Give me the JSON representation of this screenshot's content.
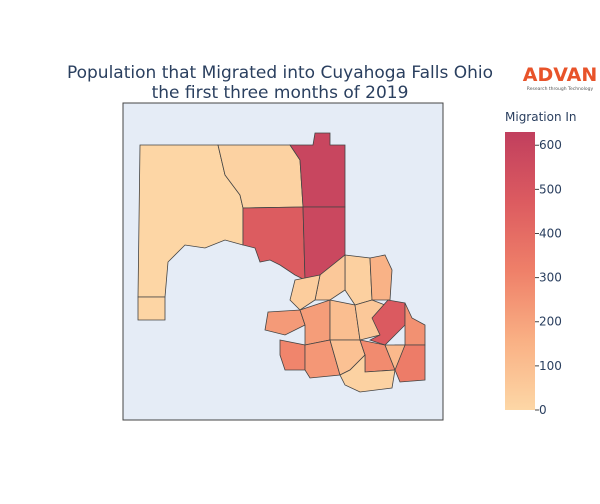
{
  "chart_data": {
    "type": "choropleth",
    "title": [
      "Population that Migrated into Cuyahoga Falls Ohio",
      "the first three months of 2019"
    ],
    "logo": "ADVAN",
    "logo_subtitle": "Research through Technology",
    "colorbar_title": "Migration In",
    "colorscale": [
      "#fdd7a6",
      "#f9b084",
      "#ef8069",
      "#dc5b60",
      "#c13f5e"
    ],
    "zlim": [
      0,
      630
    ],
    "zticks": [
      0,
      100,
      200,
      300,
      400,
      500,
      600
    ],
    "values": [
      5,
      10,
      20,
      590,
      470,
      580,
      30,
      150,
      60,
      40,
      230,
      220,
      100,
      60,
      480,
      260,
      300,
      240,
      90,
      280,
      20,
      330,
      120
    ]
  }
}
